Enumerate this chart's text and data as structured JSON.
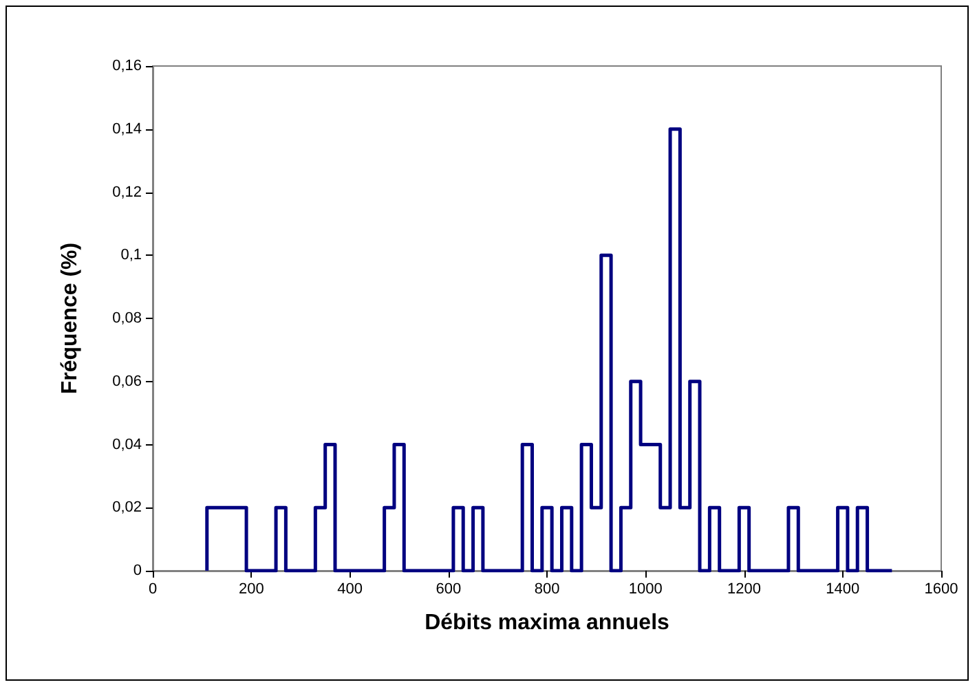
{
  "chart_data": {
    "type": "step",
    "xlabel": "Débits maxima annuels",
    "ylabel": "Fréquence (%)",
    "x": [
      110,
      110,
      190,
      250,
      270,
      330,
      350,
      370,
      470,
      490,
      510,
      610,
      630,
      650,
      670,
      750,
      770,
      790,
      810,
      830,
      850,
      870,
      890,
      910,
      930,
      950,
      970,
      990,
      1030,
      1050,
      1070,
      1090,
      1110,
      1130,
      1150,
      1190,
      1210,
      1290,
      1310,
      1390,
      1410,
      1430,
      1450,
      1500
    ],
    "series": [
      {
        "color": "#000080",
        "values": [
          0,
          0.02,
          0,
          0.02,
          0,
          0.02,
          0.04,
          0,
          0.02,
          0.04,
          0,
          0.02,
          0,
          0.02,
          0,
          0.04,
          0,
          0.02,
          0,
          0.02,
          0,
          0.04,
          0.02,
          0.1,
          0,
          0.02,
          0.06,
          0.04,
          0.02,
          0.14,
          0.02,
          0.06,
          0,
          0.02,
          0,
          0.02,
          0,
          0.02,
          0,
          0.02,
          0,
          0.02,
          0,
          0
        ]
      }
    ],
    "xlim": [
      0,
      1600
    ],
    "xticks": [
      0,
      200,
      400,
      600,
      800,
      1000,
      1200,
      1400,
      1600
    ],
    "ylim": [
      0,
      0.16
    ],
    "yticks": [
      0,
      {
        "value": 0.02,
        "label": "0,02"
      },
      {
        "value": 0.04,
        "label": "0,04"
      },
      {
        "value": 0.06,
        "label": "0,06"
      },
      {
        "value": 0.08,
        "label": "0,08"
      },
      {
        "value": 0.1,
        "label": "0,1"
      },
      {
        "value": 0.12,
        "label": "0,12"
      },
      {
        "value": 0.14,
        "label": "0,14"
      },
      {
        "value": 0.16,
        "label": "0,16"
      }
    ],
    "grid": false,
    "marker": "none",
    "line_style": "solid"
  }
}
